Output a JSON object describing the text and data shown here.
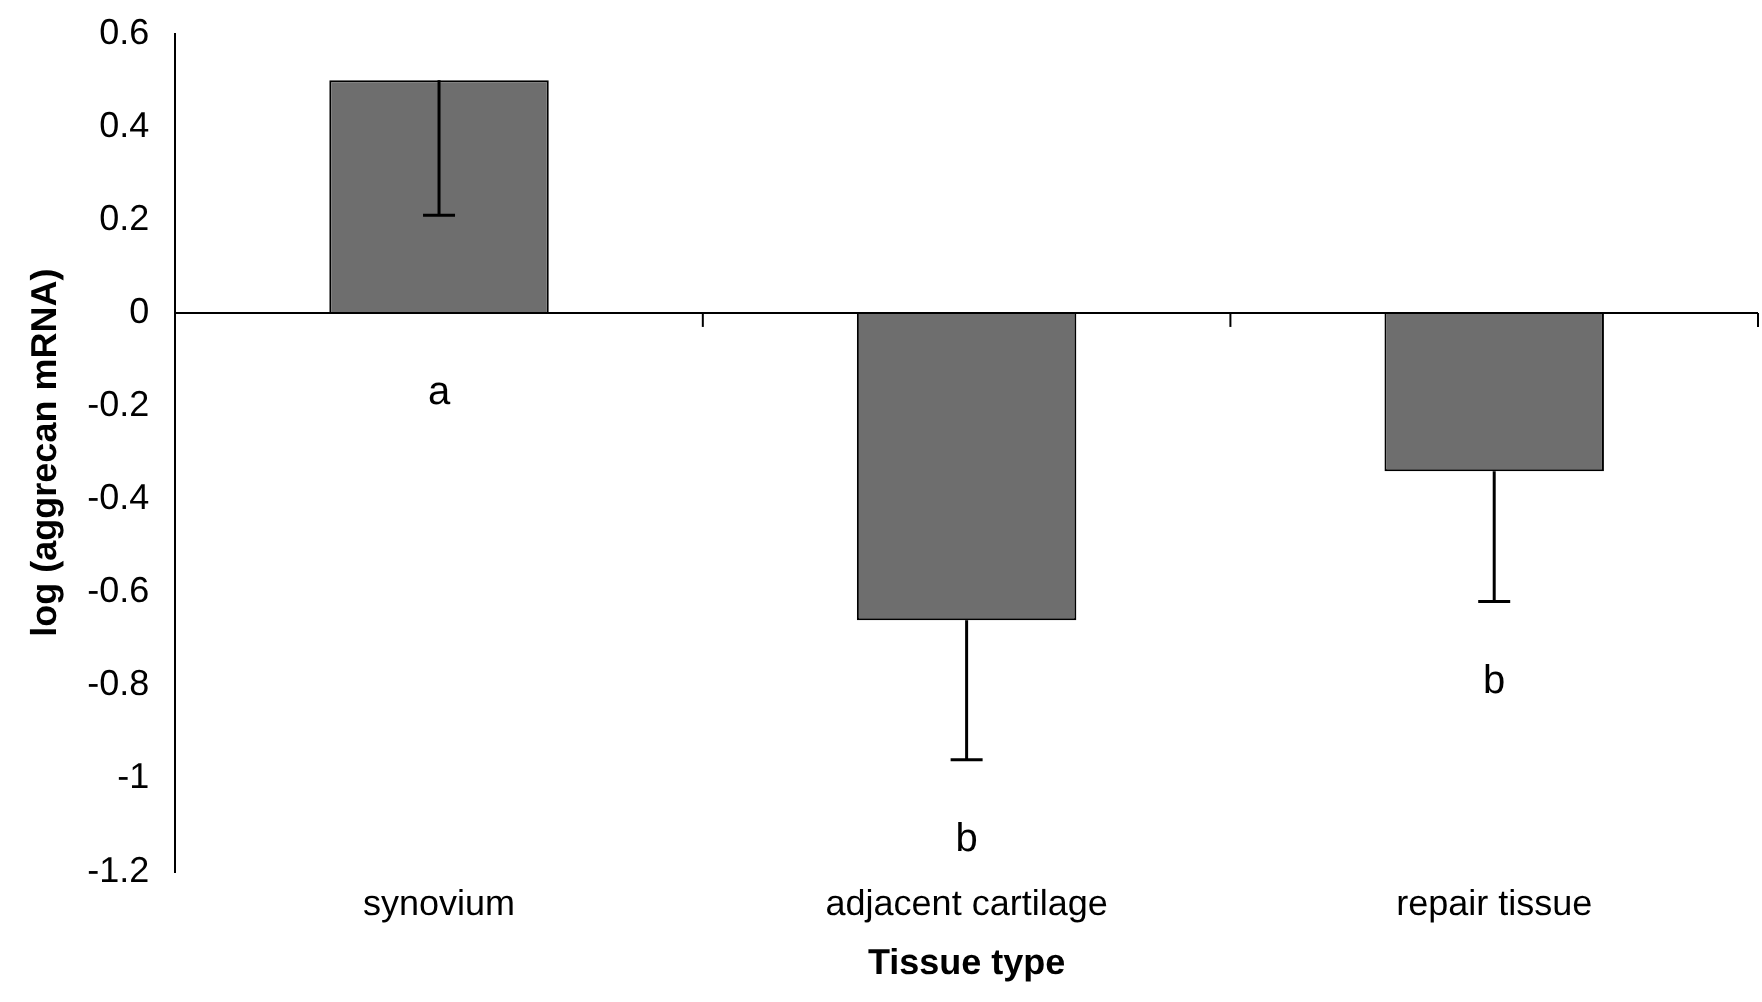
{
  "chart_data": {
    "type": "bar",
    "xlabel": "Tissue type",
    "ylabel": "log (aggrecan mRNA)",
    "categories": [
      "synovium",
      "adjacent cartilage",
      "repair tissue"
    ],
    "values": [
      0.5,
      -0.66,
      -0.34
    ],
    "errors": [
      [
        0.21,
        0.5
      ],
      [
        -0.96,
        -0.66
      ],
      [
        -0.62,
        -0.34
      ]
    ],
    "color": "#6e6e6e",
    "ylim": [
      -1.2,
      0.6
    ],
    "yticks": [
      -1.2,
      -1,
      -0.8,
      -0.6,
      -0.4,
      -0.2,
      0,
      0.2,
      0.4,
      0.6
    ],
    "annotations": [
      "a",
      "b",
      "b"
    ]
  }
}
